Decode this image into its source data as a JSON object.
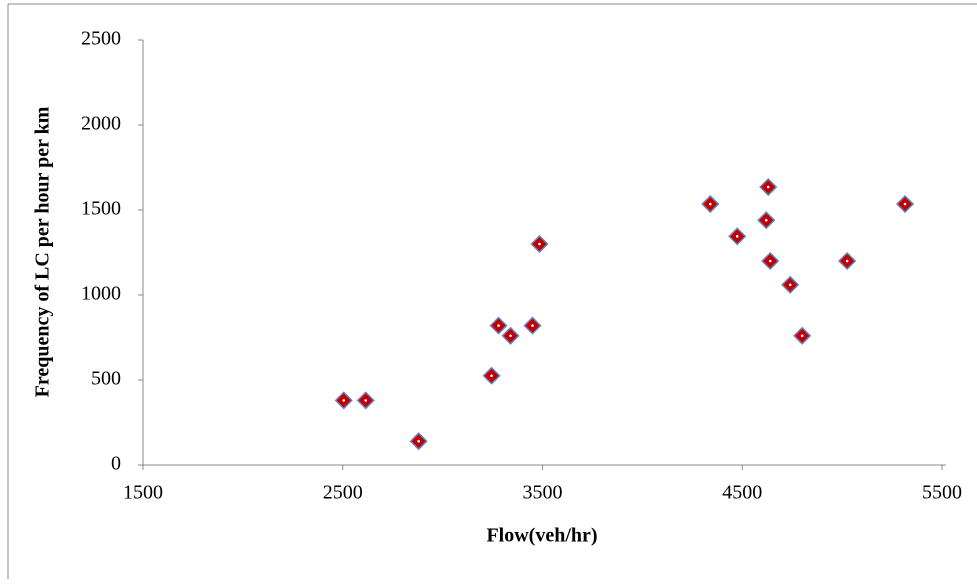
{
  "chart_data": {
    "type": "scatter",
    "x_label": "Flow(veh/hr)",
    "y_label": "Frequency of LC  per hour per km",
    "xlim": [
      1500,
      5500
    ],
    "xticks": [
      1500,
      2500,
      3500,
      4500,
      5500
    ],
    "ylim": [
      0,
      2500
    ],
    "yticks": [
      0,
      500,
      1000,
      1500,
      2000,
      2500
    ],
    "series": [
      {
        "color": "#c00000",
        "x": [
          2505,
          2615,
          2880,
          3245,
          3280,
          3340,
          3450,
          3485,
          4340,
          4475,
          4630,
          4620,
          4640,
          4740,
          4800,
          5025,
          5315
        ],
        "values": [
          380,
          380,
          140,
          525,
          820,
          760,
          820,
          1300,
          1535,
          1345,
          1635,
          1440,
          1200,
          1060,
          760,
          1200,
          1535
        ]
      }
    ]
  }
}
